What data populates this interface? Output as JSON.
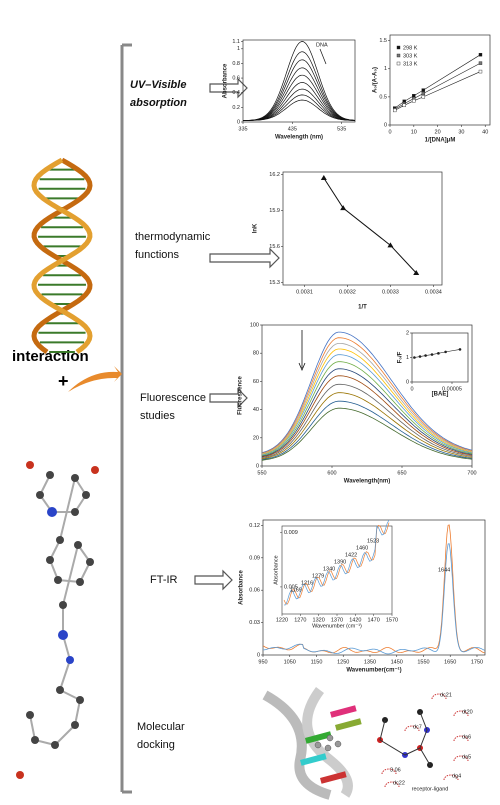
{
  "steps": [
    {
      "lines": [
        "UV–Visible",
        "absorption"
      ]
    },
    {
      "lines": [
        "thermodynamic",
        "functions"
      ]
    },
    {
      "lines": [
        "Fluorescence",
        "studies"
      ]
    },
    {
      "lines": [
        "FT-IR"
      ]
    },
    {
      "lines": [
        "Molecular",
        "docking"
      ]
    }
  ],
  "interaction": "interaction",
  "plus": "+",
  "uv": {
    "ylabel": "Absorbance",
    "xlabel": "Wavelength (nm)",
    "annotation": "DNA",
    "xlim": [
      335,
      562
    ],
    "xticks": [
      335,
      435,
      535
    ],
    "ylim": [
      0,
      1.12
    ],
    "yticks": [
      0,
      0.2,
      0.4,
      0.6,
      0.8,
      1,
      1.1
    ],
    "peak_x": 455,
    "peaks": [
      1.08,
      0.94,
      0.83,
      0.72,
      0.62,
      0.52,
      0.43,
      0.35,
      0.28
    ]
  },
  "binding": {
    "ylabel": "A₀/(A-A₀)",
    "xlabel": "1/[DNA]μM",
    "xlim": [
      0,
      42
    ],
    "xticks": [
      0,
      10,
      20,
      30,
      40
    ],
    "ylim": [
      0,
      1.6
    ],
    "yticks": [
      0,
      0.5,
      1,
      1.5
    ],
    "x": [
      2,
      6,
      10,
      14,
      38
    ],
    "series": [
      {
        "name": "298 K",
        "values": [
          0.3,
          0.42,
          0.52,
          0.62,
          1.25
        ]
      },
      {
        "name": "303 K",
        "values": [
          0.28,
          0.38,
          0.47,
          0.56,
          1.1
        ]
      },
      {
        "name": "313 K",
        "values": [
          0.26,
          0.35,
          0.43,
          0.5,
          0.95
        ]
      }
    ]
  },
  "thermo": {
    "ylabel": "lnK",
    "xlabel": "1/T",
    "xlim": [
      0.00305,
      0.00342
    ],
    "xticks": [
      0.0031,
      0.0032,
      0.0033,
      0.0034
    ],
    "ylim": [
      15.28,
      16.22
    ],
    "yticks": [
      15.3,
      15.6,
      15.9,
      16.2
    ],
    "x": [
      0.003145,
      0.00319,
      0.0033,
      0.00336
    ],
    "values": [
      16.17,
      15.92,
      15.61,
      15.38
    ]
  },
  "fluor": {
    "ylabel": "Fluorescence",
    "xlabel": "Wavelength(nm)",
    "xlim": [
      550,
      700
    ],
    "xticks": [
      550,
      600,
      650,
      700
    ],
    "ylim": [
      0,
      100
    ],
    "yticks": [
      0,
      20,
      40,
      60,
      80,
      100
    ],
    "peak_x": 605,
    "peaks": [
      95,
      91,
      87,
      83,
      79,
      74,
      69,
      64,
      58,
      52,
      46,
      41
    ],
    "inset": {
      "ylabel": "F₀/F",
      "xlabel": "[BAE]",
      "xlim": [
        0,
        7e-05
      ],
      "xticks": [
        0,
        5e-05
      ],
      "ylim": [
        0,
        2
      ],
      "yticks": [
        0,
        1,
        2
      ],
      "x": [
        3e-06,
        1e-05,
        1.7e-05,
        2.5e-05,
        3.3e-05,
        4.2e-05,
        6e-05
      ],
      "values": [
        1,
        1.04,
        1.08,
        1.12,
        1.17,
        1.23,
        1.33
      ]
    }
  },
  "ftir": {
    "ylabel": "Absorbance",
    "xlabel": "Wavenumber(cm⁻¹)",
    "annotation": "1644",
    "xlim": [
      950,
      1780
    ],
    "xticks": [
      950,
      1050,
      1150,
      1250,
      1350,
      1450,
      1550,
      1650,
      1750
    ],
    "ylim": [
      0,
      0.125
    ],
    "yticks": [
      0,
      0.03,
      0.06,
      0.09,
      0.12
    ],
    "peak_x": 1644,
    "peaks": [
      0.118,
      0.1
    ],
    "inset": {
      "xlabel": "Wavenumber (cm⁻¹)",
      "ylabel": "Absorbance",
      "xticks": [
        1220,
        1270,
        1320,
        1370,
        1420,
        1470,
        1570
      ],
      "yticks": [
        {
          "value": 0.005,
          "label": "0.005"
        },
        {
          "value": 0.009,
          "label": "0.009"
        }
      ],
      "peak_labels": [
        "1169",
        "1216",
        "1279",
        "1340",
        "1390",
        "1422",
        "1460",
        "1523"
      ]
    }
  },
  "docking": {
    "labels": [
      "dc21",
      "dt20",
      "dc7",
      "da6",
      "da5",
      "dg4",
      "dc22",
      "3.06"
    ],
    "legend": "receptor-ligand"
  }
}
